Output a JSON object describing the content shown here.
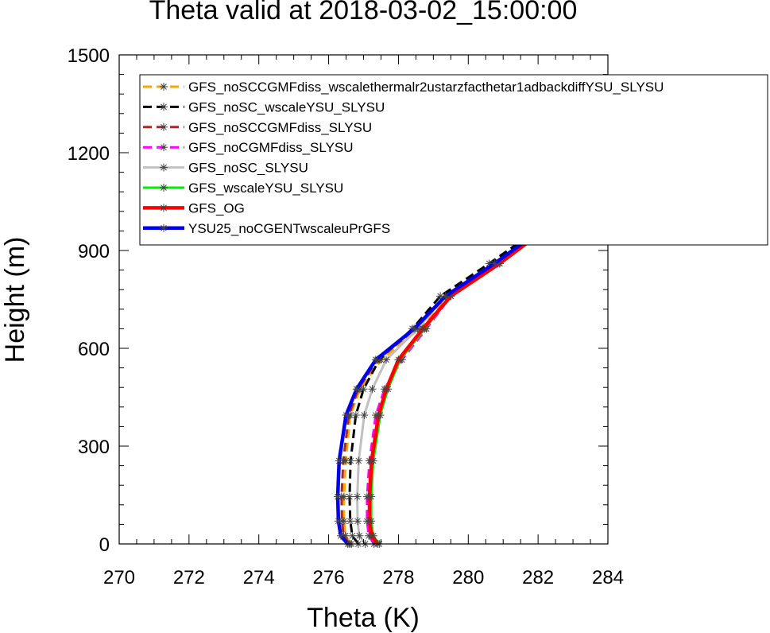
{
  "chart_data": {
    "type": "line",
    "title": "Theta valid at 2018-03-02_15:00:00",
    "xlabel": "Theta (K)",
    "ylabel": "Height (m)",
    "xlim": [
      270,
      284
    ],
    "ylim": [
      0,
      1500
    ],
    "xticks": [
      270,
      272,
      274,
      276,
      278,
      280,
      282,
      284
    ],
    "yticks": [
      0,
      300,
      600,
      900,
      1200,
      1500
    ],
    "legend_position": "top-right",
    "grid": false,
    "series": [
      {
        "name": "GFS_noSCCGMFdiss_wscalethermalr2ustarzfacthetar1adbackdiffYSU_SLYSU",
        "color": "#ffa500",
        "dash": "dashed",
        "width": 3,
        "x": [
          276.65,
          276.48,
          276.44,
          276.44,
          276.49,
          276.62,
          276.9,
          277.5,
          278.6,
          279.4,
          280.8,
          282.15,
          284.0
        ],
        "y": [
          0,
          25,
          70,
          145,
          255,
          395,
          475,
          565,
          660,
          760,
          860,
          965,
          1135
        ]
      },
      {
        "name": "GFS_noSC_wscaleYSU_SLYSU",
        "color": "#000000",
        "dash": "dashed",
        "width": 3,
        "x": [
          276.85,
          276.68,
          276.62,
          276.6,
          276.63,
          276.78,
          277.0,
          277.45,
          278.4,
          279.2,
          280.6,
          282.0,
          284.0
        ],
        "y": [
          0,
          25,
          70,
          145,
          255,
          395,
          475,
          565,
          660,
          760,
          860,
          965,
          1145
        ]
      },
      {
        "name": "GFS_noSCCGMFdiss_SLYSU",
        "color": "#a52a2a",
        "dash": "dashed",
        "width": 3,
        "x": [
          276.6,
          276.43,
          276.38,
          276.37,
          276.42,
          276.58,
          276.85,
          277.4,
          278.5,
          279.35,
          280.75,
          282.1,
          284.0
        ],
        "y": [
          0,
          25,
          70,
          145,
          255,
          395,
          475,
          565,
          660,
          760,
          860,
          965,
          1140
        ]
      },
      {
        "name": "GFS_noCGMFdiss_SLYSU",
        "color": "#ff00ff",
        "dash": "dashed",
        "width": 3,
        "x": [
          277.3,
          277.15,
          277.1,
          277.1,
          277.17,
          277.35,
          277.6,
          278.1,
          278.8,
          279.5,
          280.85,
          282.15,
          284.0
        ],
        "y": [
          0,
          25,
          70,
          145,
          255,
          395,
          475,
          565,
          660,
          760,
          860,
          965,
          1135
        ]
      },
      {
        "name": "GFS_noSC_SLYSU",
        "color": "#c0c0c0",
        "dash": "solid",
        "width": 3,
        "x": [
          277.05,
          276.88,
          276.83,
          276.82,
          276.86,
          277.02,
          277.25,
          277.65,
          278.55,
          279.35,
          280.75,
          282.1,
          284.0
        ],
        "y": [
          0,
          25,
          70,
          145,
          255,
          395,
          475,
          565,
          660,
          760,
          860,
          965,
          1138
        ]
      },
      {
        "name": "GFS_wscaleYSU_SLYSU",
        "color": "#00ee00",
        "dash": "solid",
        "width": 3,
        "x": [
          277.45,
          277.28,
          277.22,
          277.22,
          277.28,
          277.48,
          277.7,
          278.05,
          278.75,
          279.5,
          280.9,
          282.2,
          284.0
        ],
        "y": [
          0,
          25,
          70,
          145,
          255,
          395,
          475,
          565,
          660,
          760,
          860,
          965,
          1132
        ]
      },
      {
        "name": "GFS_OG",
        "color": "#ff0000",
        "dash": "solid",
        "width": 4.5,
        "x": [
          277.4,
          277.23,
          277.17,
          277.17,
          277.23,
          277.43,
          277.65,
          278.0,
          278.7,
          279.5,
          280.9,
          282.2,
          284.0
        ],
        "y": [
          0,
          25,
          70,
          145,
          255,
          395,
          475,
          565,
          660,
          760,
          860,
          965,
          1133
        ]
      },
      {
        "name": "YSU25_noCGENTwscaleuPrGFS",
        "color": "#0000ee",
        "dash": "solid",
        "width": 4.5,
        "x": [
          276.55,
          276.35,
          276.28,
          276.26,
          276.3,
          276.5,
          276.8,
          277.35,
          278.45,
          279.35,
          280.75,
          282.1,
          284.0
        ],
        "y": [
          0,
          25,
          70,
          145,
          255,
          395,
          475,
          565,
          660,
          760,
          860,
          965,
          1138
        ]
      }
    ]
  }
}
